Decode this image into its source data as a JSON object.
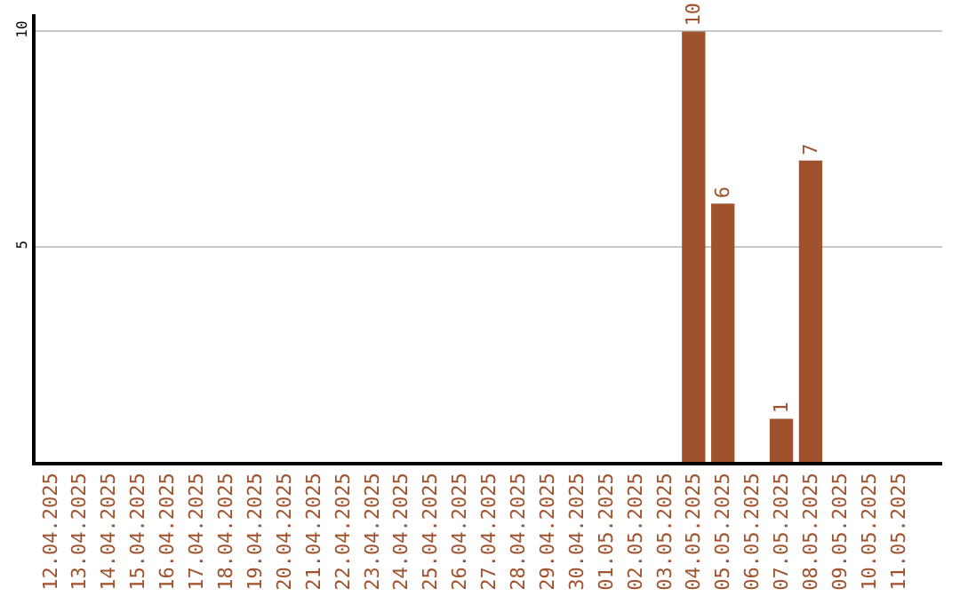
{
  "chart_data": {
    "type": "bar",
    "categories": [
      "12.04.2025",
      "13.04.2025",
      "14.04.2025",
      "15.04.2025",
      "16.04.2025",
      "17.04.2025",
      "18.04.2025",
      "19.04.2025",
      "20.04.2025",
      "21.04.2025",
      "22.04.2025",
      "23.04.2025",
      "24.04.2025",
      "25.04.2025",
      "26.04.2025",
      "27.04.2025",
      "28.04.2025",
      "29.04.2025",
      "30.04.2025",
      "01.05.2025",
      "02.05.2025",
      "03.05.2025",
      "04.05.2025",
      "05.05.2025",
      "06.05.2025",
      "07.05.2025",
      "08.05.2025",
      "09.05.2025",
      "10.05.2025",
      "11.05.2025"
    ],
    "values": [
      null,
      null,
      null,
      null,
      null,
      null,
      null,
      null,
      null,
      null,
      null,
      null,
      null,
      null,
      null,
      null,
      null,
      null,
      null,
      null,
      null,
      null,
      10,
      6,
      null,
      1,
      7,
      null,
      null,
      null
    ],
    "color": "#a0522d",
    "ylim": [
      0,
      10.4
    ],
    "yticks": [
      5,
      10
    ],
    "grid": "y",
    "data_labels": true
  }
}
